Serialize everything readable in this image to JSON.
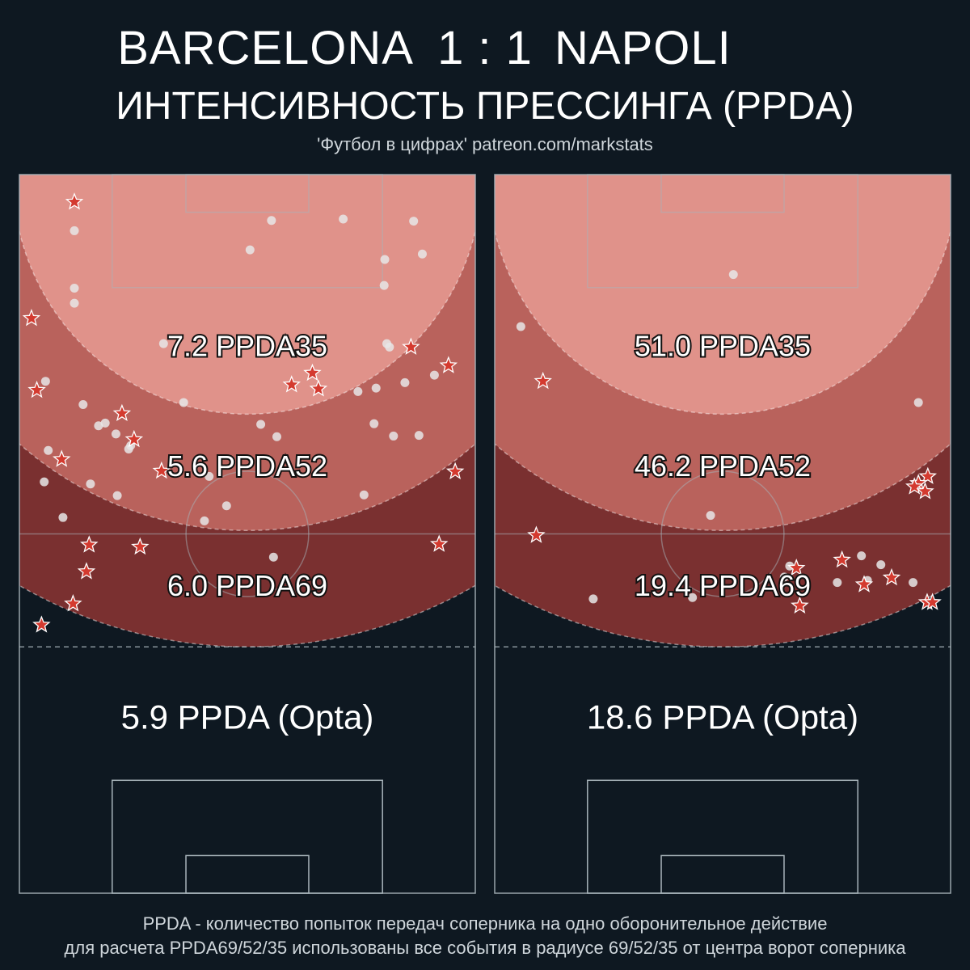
{
  "header": {
    "home_team": "BARCELONA",
    "score": "1 : 1",
    "away_team": "NAPOLI",
    "metric_title": "ИНТЕНСИВНОСТЬ ПРЕССИНГА (PPDA)",
    "source": "'Футбол в цифрах' patreon.com/markstats"
  },
  "footnote": {
    "line1": "PPDA - количество попыток передач соперника на одно оборонительное действие",
    "line2": "для расчета PPDA69/52/35 использованы все события в радиусе 69/52/35 от центра ворот соперника"
  },
  "colors": {
    "background": "#0e1821",
    "zone35": "#e0928a",
    "zone52": "#b9625c",
    "zone69": "#7a3030",
    "star": "#d43a2f",
    "dot": "#e6e6e6",
    "pitch_line": "#a8b4ba"
  },
  "chart_data": [
    {
      "type": "scatter",
      "team": "BARCELONA",
      "ppda35_label": "7.2 PPDA35",
      "ppda52_label": "5.6 PPDA52",
      "ppda69_label": "6.0 PPDA69",
      "opta_label": "5.9 PPDA (Opta)",
      "ppda35": 7.2,
      "ppda52": 5.6,
      "ppda69": 6.0,
      "ppda_opta": 5.9,
      "xlim": [
        0,
        68
      ],
      "ylim": [
        0,
        105
      ],
      "stars": [
        [
          8.2,
          101
        ],
        [
          1.8,
          84
        ],
        [
          2.6,
          73.5
        ],
        [
          58.4,
          79.8
        ],
        [
          64,
          77.1
        ],
        [
          43.7,
          76
        ],
        [
          44.6,
          73.7
        ],
        [
          40.6,
          74.3
        ],
        [
          15.3,
          70.1
        ],
        [
          17.1,
          66.3
        ],
        [
          6.3,
          63.4
        ],
        [
          21.2,
          61.7
        ],
        [
          65,
          61.6
        ],
        [
          10.4,
          50.9
        ],
        [
          10,
          47
        ],
        [
          18,
          50.6
        ],
        [
          62.6,
          51
        ],
        [
          8,
          42.3
        ],
        [
          3.3,
          39.2
        ]
      ],
      "dots": [
        [
          8.2,
          96.8
        ],
        [
          37.6,
          98.3
        ],
        [
          48.3,
          98.5
        ],
        [
          58.8,
          98.2
        ],
        [
          34.4,
          94
        ],
        [
          60.1,
          93.4
        ],
        [
          54.5,
          92.6
        ],
        [
          8.2,
          88.4
        ],
        [
          8.2,
          86.2
        ],
        [
          54.4,
          88.8
        ],
        [
          21.5,
          80.3
        ],
        [
          54.8,
          80.3
        ],
        [
          55.2,
          79.8
        ],
        [
          3.9,
          74.8
        ],
        [
          24.5,
          71.7
        ],
        [
          61.9,
          75.7
        ],
        [
          57.5,
          74.6
        ],
        [
          53.2,
          73.8
        ],
        [
          50.5,
          73.3
        ],
        [
          9.5,
          71.4
        ],
        [
          11.8,
          68.3
        ],
        [
          12.8,
          68.7
        ],
        [
          14.4,
          67.1
        ],
        [
          16.3,
          64.9
        ],
        [
          16.6,
          65.4
        ],
        [
          4.3,
          64.7
        ],
        [
          36,
          68.5
        ],
        [
          38.4,
          66.7
        ],
        [
          52.9,
          68.6
        ],
        [
          55.8,
          66.8
        ],
        [
          59.6,
          66.9
        ],
        [
          3.7,
          60.1
        ],
        [
          10.6,
          59.8
        ],
        [
          14.6,
          58.1
        ],
        [
          28.3,
          60.9
        ],
        [
          27.6,
          54.4
        ],
        [
          30.9,
          56.6
        ],
        [
          6.5,
          54.9
        ],
        [
          51.4,
          58.2
        ],
        [
          37.9,
          49.1
        ]
      ]
    },
    {
      "type": "scatter",
      "team": "NAPOLI",
      "ppda35_label": "51.0 PPDA35",
      "ppda52_label": "46.2 PPDA52",
      "ppda69_label": "19.4 PPDA69",
      "opta_label": "18.6 PPDA (Opta)",
      "ppda35": 51.0,
      "ppda52": 46.2,
      "ppda69": 19.4,
      "ppda_opta": 18.6,
      "xlim": [
        0,
        68
      ],
      "ylim": [
        0,
        105
      ],
      "stars": [
        [
          7.2,
          74.8
        ],
        [
          64.6,
          60.9
        ],
        [
          63.2,
          59.9
        ],
        [
          62.6,
          59.4
        ],
        [
          64.2,
          58.7
        ],
        [
          6.2,
          52.3
        ],
        [
          51.8,
          48.7
        ],
        [
          45,
          47.5
        ],
        [
          59.2,
          46.1
        ],
        [
          55.1,
          45.1
        ],
        [
          64.5,
          42.5
        ],
        [
          65.3,
          42.5
        ],
        [
          45.5,
          42
        ]
      ],
      "dots": [
        [
          35.6,
          90.4
        ],
        [
          3.9,
          82.8
        ],
        [
          63.2,
          71.7
        ],
        [
          32.2,
          55.2
        ],
        [
          54.7,
          49.3
        ],
        [
          57.6,
          48
        ],
        [
          44,
          47.8
        ],
        [
          43.2,
          46.2
        ],
        [
          55.6,
          45.7
        ],
        [
          51.1,
          45.4
        ],
        [
          62.4,
          45.4
        ],
        [
          29.5,
          43.2
        ],
        [
          14.7,
          43
        ]
      ]
    }
  ]
}
